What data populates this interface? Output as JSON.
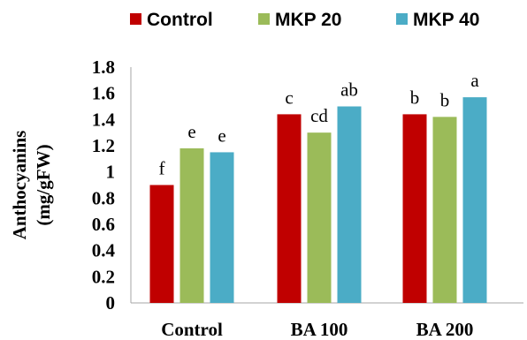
{
  "chart_data": {
    "type": "bar",
    "categories": [
      "Control",
      "BA 100",
      "BA 200"
    ],
    "series": [
      {
        "name": "Control",
        "color": "#c00000",
        "values": [
          0.9,
          1.44,
          1.44
        ],
        "labels": [
          "f",
          "c",
          "b"
        ]
      },
      {
        "name": "MKP 20",
        "color": "#9bbb59",
        "values": [
          1.18,
          1.3,
          1.42
        ],
        "labels": [
          "e",
          "cd",
          "b"
        ]
      },
      {
        "name": "MKP 40",
        "color": "#4bacc6",
        "values": [
          1.15,
          1.5,
          1.57
        ],
        "labels": [
          "e",
          "ab",
          "a"
        ]
      }
    ],
    "ylabel_lines": [
      "Anthocyanins",
      "(mg/gFW)"
    ],
    "xlabel": "",
    "ylim": [
      0,
      1.8
    ],
    "yticks": [
      0,
      0.2,
      0.4,
      0.6,
      0.8,
      1,
      1.2,
      1.4,
      1.6,
      1.8
    ],
    "ytick_labels": [
      "0",
      "0.2",
      "0.4",
      "0.6",
      "0.8",
      "1",
      "1.2",
      "1.4",
      "1.6",
      "1.8"
    ],
    "grid": false,
    "legend_position": "top"
  }
}
